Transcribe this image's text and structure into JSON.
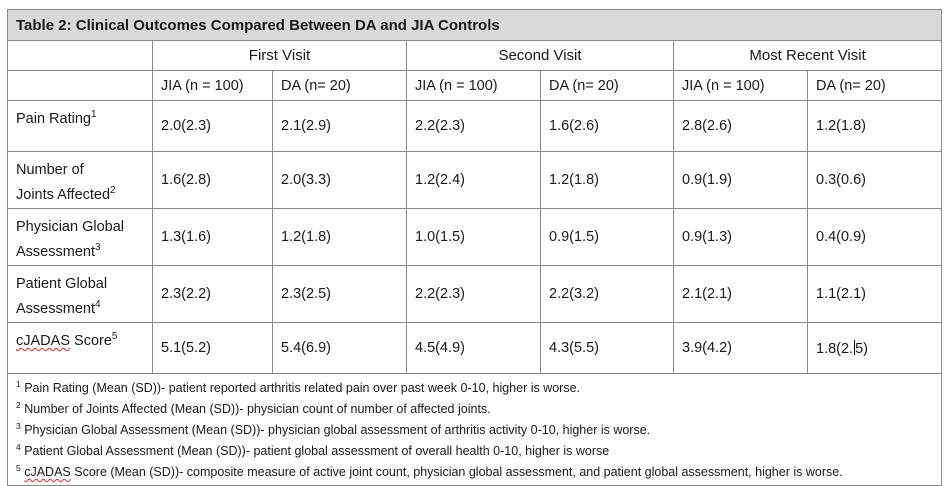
{
  "table": {
    "title": "Table 2: Clinical Outcomes Compared Between DA and JIA Controls",
    "visits": [
      "First Visit",
      "Second Visit",
      "Most Recent Visit"
    ],
    "groups": [
      "JIA (n = 100)",
      "DA (n= 20)",
      "JIA (n = 100)",
      "DA (n= 20)",
      "JIA (n = 100)",
      "DA (n= 20)"
    ],
    "rows": [
      {
        "label_lines": [
          "Pain Rating"
        ],
        "sup": "1",
        "values": [
          "2.0(2.3)",
          "2.1(2.9)",
          "2.2(2.3)",
          "1.6(2.6)",
          "2.8(2.6)",
          "1.2(1.8)"
        ]
      },
      {
        "label_lines": [
          "Number of",
          "Joints Affected"
        ],
        "sup": "2",
        "values": [
          "1.6(2.8)",
          "2.0(3.3)",
          "1.2(2.4)",
          "1.2(1.8)",
          "0.9(1.9)",
          "0.3(0.6)"
        ]
      },
      {
        "label_lines": [
          "Physician Global",
          "Assessment"
        ],
        "sup": "3",
        "values": [
          "1.3(1.6)",
          "1.2(1.8)",
          "1.0(1.5)",
          "0.9(1.5)",
          "0.9(1.3)",
          "0.4(0.9)"
        ]
      },
      {
        "label_lines": [
          "Patient Global",
          "Assessment"
        ],
        "sup": "4",
        "values": [
          "2.3(2.2)",
          "2.3(2.5)",
          "2.2(2.3)",
          "2.2(3.2)",
          "2.1(2.1)",
          "1.1(2.1)"
        ]
      },
      {
        "label_lines": [
          "cJADAS",
          " Score"
        ],
        "sup": "5",
        "values": [
          "5.1(5.2)",
          "5.4(6.9)",
          "4.5(4.9)",
          "4.3(5.5)",
          "3.9(4.2)",
          "1.8(2.5)"
        ]
      }
    ],
    "footnotes": [
      {
        "sup": "1",
        "text": " Pain Rating (Mean (SD))- patient reported arthritis related pain over past week 0-10, higher is worse."
      },
      {
        "sup": "2",
        "text": " Number of Joints Affected (Mean (SD))- physician count of number of affected joints."
      },
      {
        "sup": "3",
        "text": " Physician Global Assessment (Mean (SD))- physician global assessment of arthritis activity 0-10, higher is worse."
      },
      {
        "sup": "4",
        "text": " Patient Global Assessment (Mean (SD))- patient global assessment of overall health 0-10, higher is worse"
      },
      {
        "sup": "5",
        "pre": " ",
        "word": "cJADAS",
        "text": " Score (Mean (SD))- composite measure of active joint count, physician global assessment, and patient global assessment, higher is worse."
      }
    ]
  }
}
